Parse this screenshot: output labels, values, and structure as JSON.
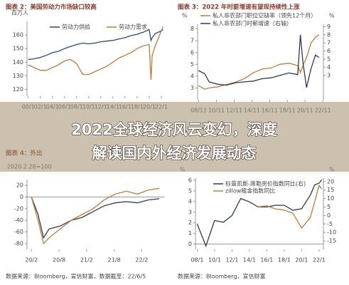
{
  "banner": [
    "2022全球经济风云变幻，深度",
    "解读国内外经济发展动态"
  ],
  "chart_data": [
    {
      "type": "line",
      "title": "图表 2：美国劳动力市场缺口较高",
      "ylabel": "百万人",
      "x": [
        2000,
        2001,
        2002,
        2003,
        2004,
        2005,
        2006,
        2007,
        2008,
        2009,
        2010,
        2011,
        2012,
        2013,
        2014,
        2015,
        2016,
        2017,
        2018,
        2019,
        2020,
        2020.3,
        2020.5,
        2021,
        2022,
        2022.3
      ],
      "xlim": [
        1999.8,
        2022.6
      ],
      "xticks": [
        {
          "value": 2000,
          "label": "00/1"
        },
        {
          "value": 2002,
          "label": "02/1"
        },
        {
          "value": 2004,
          "label": "04/1"
        },
        {
          "value": 2006,
          "label": "06/1"
        },
        {
          "value": 2008,
          "label": "08/1"
        },
        {
          "value": 2010,
          "label": "10/1"
        },
        {
          "value": 2012,
          "label": "12/1"
        },
        {
          "value": 2014,
          "label": "14/1"
        },
        {
          "value": 2016,
          "label": "16/1"
        },
        {
          "value": 2018,
          "label": "18/1"
        },
        {
          "value": 2020,
          "label": "20/1"
        },
        {
          "value": 2022,
          "label": "22/1"
        }
      ],
      "ylim": [
        115,
        170
      ],
      "yticks": [
        120,
        130,
        140,
        150,
        160
      ],
      "series": [
        {
          "name": "劳动力供给",
          "color": "#2e4a6b",
          "values": [
            142,
            142.5,
            143.5,
            145,
            147,
            148,
            150,
            151.5,
            153,
            154,
            153.5,
            154,
            155,
            155.5,
            156,
            157,
            158,
            159.5,
            160.5,
            162,
            164,
            156,
            158,
            161,
            163,
            164
          ]
        },
        {
          "name": "劳动力需求",
          "color": "#c07a3a",
          "values": [
            138,
            136,
            134,
            134,
            136,
            138,
            141,
            142,
            139,
            131,
            131,
            133,
            135,
            137,
            140,
            143,
            145,
            147,
            150,
            152,
            153,
            127,
            145,
            152,
            163,
            166
          ]
        }
      ]
    },
    {
      "type": "line",
      "title": "图表 3：2022 年时薪增速有望现持续性上涨",
      "ylabel": "%",
      "y2label": "%",
      "x": [
        2008.8,
        2009.5,
        2010,
        2011,
        2012,
        2013,
        2014,
        2015,
        2016,
        2017,
        2018,
        2019,
        2020,
        2020.3,
        2020.6,
        2021,
        2021.5,
        2022,
        2022.4
      ],
      "xlim": [
        2008.7,
        2022.9
      ],
      "xticks": [
        {
          "value": 2008.83,
          "label": "08/11"
        },
        {
          "value": 2010.83,
          "label": "10/11"
        },
        {
          "value": 2012.83,
          "label": "12/11"
        },
        {
          "value": 2014.83,
          "label": "14/11"
        },
        {
          "value": 2016.83,
          "label": "16/11"
        },
        {
          "value": 2018.83,
          "label": "18/11"
        },
        {
          "value": 2020.83,
          "label": "20/11"
        },
        {
          "value": 2022.83,
          "label": "22/11"
        }
      ],
      "ylim": [
        2,
        8.4
      ],
      "yticks": [
        3,
        4,
        5,
        6,
        7,
        8
      ],
      "y2lim": [
        0,
        9.3
      ],
      "y2ticks": [
        3,
        4,
        5,
        6,
        7,
        8,
        9
      ],
      "series": [
        {
          "name": "私人非农部门职位空缺率（领先12个月）",
          "color": "#c07a3a",
          "values": [
            3.2,
            2.9,
            3.0,
            3.1,
            3.3,
            3.5,
            3.8,
            4.3,
            4.6,
            4.7,
            5.0,
            5.1,
            4.9,
            4.3,
            4.9,
            5.6,
            6.8,
            7.3,
            7.5
          ]
        },
        {
          "name": "私人非农部门时薪增速（右轴）",
          "color": "#2e3b4e",
          "axis": "y2",
          "values": [
            3.6,
            3.2,
            2.2,
            1.9,
            1.8,
            2.1,
            2.2,
            2.3,
            2.6,
            2.7,
            3.0,
            3.3,
            3.1,
            8.0,
            4.5,
            1.5,
            3.8,
            5.5,
            5.2
          ]
        }
      ]
    },
    {
      "type": "line",
      "title": "图表 4：外出",
      "subtitle": "2020.2.28=100",
      "source": "数据来源：Bloomberg，宣信财富，数据截至：22/6/5",
      "x": [
        2020.08,
        2020.2,
        2020.3,
        2020.4,
        2020.6,
        2020.8,
        2021.0,
        2021.2,
        2021.4,
        2021.6,
        2021.8,
        2022.0,
        2022.2,
        2022.4
      ],
      "xlim": [
        2020.0,
        2022.5
      ],
      "xticks": [
        {
          "value": 2020.08,
          "label": "20/2"
        },
        {
          "value": 2020.58,
          "label": "20/8"
        },
        {
          "value": 2021.08,
          "label": "21/2"
        },
        {
          "value": 2021.58,
          "label": "21/8"
        },
        {
          "value": 2022.08,
          "label": "22/2"
        }
      ],
      "ylim": [
        -90,
        30
      ],
      "yticks": [
        -80,
        -60,
        -40,
        -20,
        0,
        20
      ],
      "series": [
        {
          "color": "#2e3b4e",
          "values": [
            0,
            -30,
            -70,
            -55,
            -50,
            -40,
            -35,
            -25,
            -15,
            -10,
            -8,
            -10,
            -5,
            -3
          ]
        },
        {
          "color": "#c07a3a",
          "values": [
            0,
            -40,
            -80,
            -70,
            -55,
            -40,
            -30,
            -20,
            -5,
            5,
            10,
            5,
            12,
            15
          ]
        }
      ]
    },
    {
      "type": "line",
      "ylabel": "%",
      "y2label": "%",
      "source": "数据来源：Bloomberg，宣信财富",
      "x": [
        2008,
        2009,
        2010,
        2011,
        2012,
        2013,
        2014,
        2015,
        2016,
        2017,
        2018,
        2019,
        2020,
        2021,
        2021.5,
        2022,
        2022.3
      ],
      "xlim": [
        2007.8,
        2022.5
      ],
      "xticks": [
        {
          "value": 2008,
          "label": "08/1"
        },
        {
          "value": 2010,
          "label": "10/1"
        },
        {
          "value": 2012,
          "label": "12/1"
        },
        {
          "value": 2014,
          "label": "14/1"
        },
        {
          "value": 2016,
          "label": "16/1"
        },
        {
          "value": 2018,
          "label": "18/1"
        },
        {
          "value": 2020,
          "label": "20/1"
        },
        {
          "value": 2022,
          "label": "22/1"
        }
      ],
      "ylim": [
        -0.5,
        6.2
      ],
      "yticks": [
        0,
        1,
        2,
        3,
        4,
        5,
        6
      ],
      "y2lim": [
        -20,
        22
      ],
      "y2ticks": [
        -15,
        -10,
        -5,
        0,
        5,
        10,
        15,
        20
      ],
      "series": [
        {
          "name": "标普凯斯-席勒房价指数同比(右)",
          "color": "#2e3b4e",
          "axis": "y2",
          "values": [
            -5,
            -18,
            -3,
            -4,
            0,
            10,
            8,
            5,
            5,
            6,
            6,
            3,
            4,
            12,
            18,
            19,
            21
          ]
        },
        {
          "name": "zillow租金指数同比",
          "color": "#c07a3a",
          "values": [
            null,
            null,
            null,
            null,
            null,
            null,
            null,
            3.5,
            3.6,
            3.3,
            3.2,
            2.9,
            1.5,
            2.5,
            4,
            5.5,
            5.2
          ]
        }
      ]
    }
  ]
}
